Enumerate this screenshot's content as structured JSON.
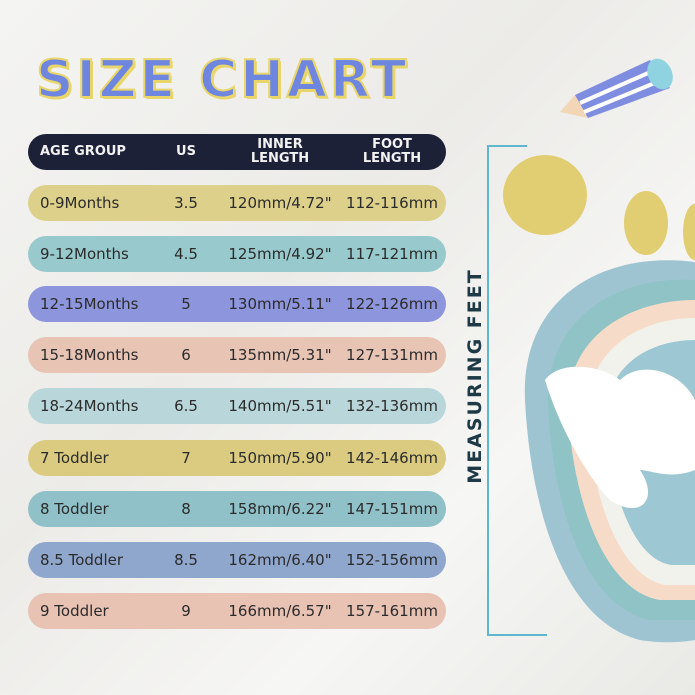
{
  "title": "SIZE CHART",
  "side_label": "MEASURING FEET",
  "headers": {
    "age": "AGE GROUP",
    "us": "US",
    "inner": "INNER\nLENGTH",
    "foot": "FOOT\nLENGTH",
    "inner_l1": "INNER",
    "inner_l2": "LENGTH",
    "foot_l1": "FOOT",
    "foot_l2": "LENGTH"
  },
  "rows": [
    {
      "age": "0-9Months",
      "us": "3.5",
      "inner": "120mm/4.72\"",
      "foot": "112-116mm",
      "color": "#ddd08a"
    },
    {
      "age": "9-12Months",
      "us": "4.5",
      "inner": "125mm/4.92\"",
      "foot": "117-121mm",
      "color": "#98cacd"
    },
    {
      "age": "12-15Months",
      "us": "5",
      "inner": "130mm/5.11\"",
      "foot": "122-126mm",
      "color": "#8d95dc"
    },
    {
      "age": "15-18Months",
      "us": "6",
      "inner": "135mm/5.31\"",
      "foot": "127-131mm",
      "color": "#e8c4b5"
    },
    {
      "age": "18-24Months",
      "us": "6.5",
      "inner": "140mm/5.51\"",
      "foot": "132-136mm",
      "color": "#b9d7da"
    },
    {
      "age": "7 Toddler",
      "us": "7",
      "inner": "150mm/5.90\"",
      "foot": "142-146mm",
      "color": "#dacb80"
    },
    {
      "age": "8 Toddler",
      "us": "8",
      "inner": "158mm/6.22\"",
      "foot": "147-151mm",
      "color": "#90c1c8"
    },
    {
      "age": "8.5 Toddler",
      "us": "8.5",
      "inner": "162mm/6.40\"",
      "foot": "152-156mm",
      "color": "#8fa7cd"
    },
    {
      "age": "9 Toddler",
      "us": "9",
      "inner": "166mm/6.57\"",
      "foot": "157-161mm",
      "color": "#e8c2b3"
    }
  ]
}
